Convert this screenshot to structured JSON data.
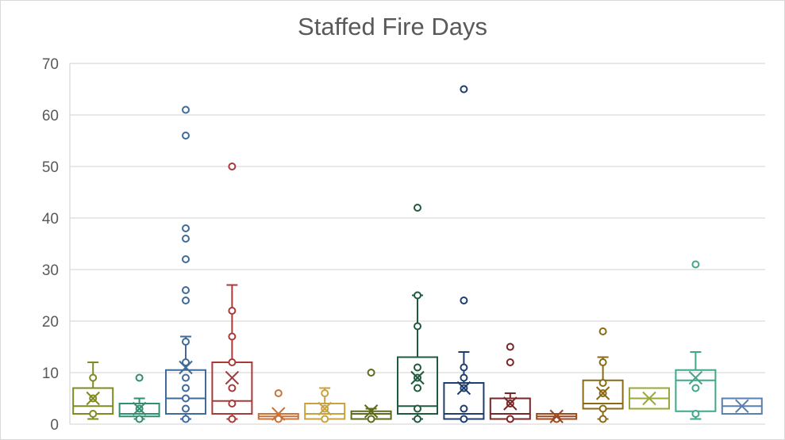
{
  "chart_data": {
    "type": "box",
    "title": "Staffed Fire Days",
    "xlabel": "",
    "ylabel": "",
    "ylim": [
      0,
      70
    ],
    "yticks": [
      0,
      10,
      20,
      30,
      40,
      50,
      60,
      70
    ],
    "grid": true,
    "legend": "none",
    "boxes": [
      {
        "color": "#7f8a22",
        "min": 1,
        "q1": 2,
        "median": 3.5,
        "q3": 7,
        "max": 12,
        "mean": 5,
        "points": [
          2,
          5,
          9
        ]
      },
      {
        "color": "#2f8f6e",
        "min": 1,
        "q1": 1.5,
        "median": 2,
        "q3": 4,
        "max": 5,
        "mean": 3,
        "points": [
          1,
          3,
          9
        ]
      },
      {
        "color": "#3f6a9a",
        "min": 1,
        "q1": 2,
        "median": 5,
        "q3": 10.5,
        "max": 17,
        "mean": 11,
        "points": [
          1,
          3,
          5,
          7,
          9,
          12,
          16,
          24,
          26,
          32,
          36,
          38,
          56,
          61
        ]
      },
      {
        "color": "#a83a3a",
        "min": 1,
        "q1": 2,
        "median": 4.5,
        "q3": 12,
        "max": 27,
        "mean": 9,
        "points": [
          1,
          4,
          7,
          12,
          17,
          22,
          50
        ]
      },
      {
        "color": "#c9733b",
        "min": 1,
        "q1": 1,
        "median": 1.5,
        "q3": 2,
        "max": 2,
        "mean": 2,
        "points": [
          1,
          6
        ]
      },
      {
        "color": "#c9a23b",
        "min": 1,
        "q1": 1,
        "median": 2,
        "q3": 4,
        "max": 7,
        "mean": 3,
        "points": [
          1,
          3,
          6
        ]
      },
      {
        "color": "#5e6b1c",
        "min": 1,
        "q1": 1,
        "median": 2,
        "q3": 2.5,
        "max": 3,
        "mean": 2.5,
        "points": [
          1,
          10
        ]
      },
      {
        "color": "#1f5a3e",
        "min": 1,
        "q1": 2,
        "median": 3.5,
        "q3": 13,
        "max": 25,
        "mean": 9,
        "points": [
          1,
          3,
          7,
          9,
          11,
          19,
          25,
          42
        ]
      },
      {
        "color": "#1f3e6e",
        "min": 1,
        "q1": 1,
        "median": 2,
        "q3": 8,
        "max": 14,
        "mean": 7,
        "points": [
          1,
          3,
          7,
          9,
          11,
          24,
          65
        ]
      },
      {
        "color": "#7a2626",
        "min": 1,
        "q1": 1,
        "median": 2,
        "q3": 5,
        "max": 6,
        "mean": 4,
        "points": [
          1,
          4,
          12,
          15
        ]
      },
      {
        "color": "#9a4a20",
        "min": 1,
        "q1": 1,
        "median": 1.5,
        "q3": 2,
        "max": 2,
        "mean": 1.5,
        "points": [
          1
        ]
      },
      {
        "color": "#8a6a15",
        "min": 1,
        "q1": 3,
        "median": 4,
        "q3": 8.5,
        "max": 13,
        "mean": 6,
        "points": [
          1,
          3,
          6,
          8,
          12,
          18
        ]
      },
      {
        "color": "#9aa83a",
        "min": 3,
        "q1": 3,
        "median": 5,
        "q3": 7,
        "max": 7,
        "mean": 5,
        "points": []
      },
      {
        "color": "#3fa889",
        "min": 1,
        "q1": 2.5,
        "median": 8.5,
        "q3": 10.5,
        "max": 14,
        "mean": 9,
        "points": [
          2,
          7,
          31
        ]
      },
      {
        "color": "#5a7fb0",
        "min": 2,
        "q1": 2,
        "median": 3.5,
        "q3": 5,
        "max": 5,
        "mean": 3.5,
        "points": []
      }
    ]
  }
}
